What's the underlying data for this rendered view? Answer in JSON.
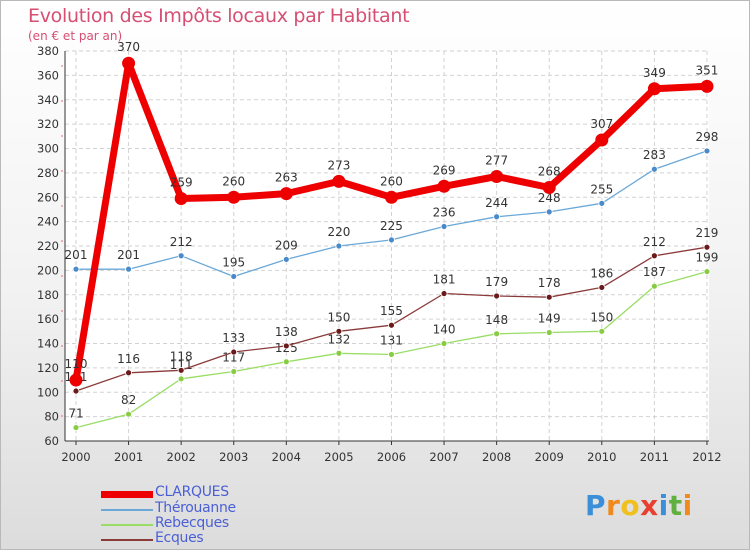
{
  "chart_data": {
    "type": "line",
    "title": "Evolution des Impôts locaux par Habitant",
    "subtitle": "(en € et par an)",
    "xlabel": "",
    "ylabel": "",
    "ylim": [
      60,
      380
    ],
    "y_ticks": [
      60,
      80,
      100,
      120,
      140,
      160,
      180,
      200,
      220,
      240,
      260,
      280,
      300,
      320,
      340,
      360,
      380
    ],
    "categories": [
      "2000",
      "2001",
      "2002",
      "2003",
      "2004",
      "2005",
      "2006",
      "2007",
      "2008",
      "2009",
      "2010",
      "2011",
      "2012"
    ],
    "grid": true,
    "legend_position": "bottom-left",
    "series": [
      {
        "name": "Rebecques",
        "color": "#99dd66",
        "dot": "#88cc44",
        "width": 1.3,
        "values": [
          71,
          82,
          111,
          117,
          125,
          132,
          131,
          140,
          148,
          149,
          150,
          187,
          199
        ],
        "labels": [
          "71",
          "82",
          "111",
          "117",
          "125",
          "132",
          "131",
          "140",
          "148",
          "149",
          "150",
          "187",
          "199"
        ]
      },
      {
        "name": "Ecques",
        "color": "#8b3a3a",
        "dot": "#6a1a1a",
        "width": 1.3,
        "values": [
          101,
          116,
          118,
          133,
          138,
          150,
          155,
          181,
          179,
          178,
          186,
          212,
          219
        ],
        "labels": [
          "101",
          "116",
          "118",
          "133",
          "138",
          "150",
          "155",
          "181",
          "179",
          "178",
          "186",
          "212",
          "219"
        ]
      },
      {
        "name": "Thérouanne",
        "color": "#6aa8d8",
        "dot": "#4a8ac8",
        "width": 1.3,
        "values": [
          201,
          201,
          212,
          195,
          209,
          220,
          225,
          236,
          244,
          248,
          255,
          283,
          298
        ],
        "labels": [
          "201",
          "201",
          "212",
          "195",
          "209",
          "220",
          "225",
          "236",
          "244",
          "248",
          "255",
          "283",
          "298"
        ]
      },
      {
        "name": "CLARQUES",
        "color": "#ee0000",
        "dot": "#ee0000",
        "width": 7,
        "values": [
          110,
          370,
          259,
          260,
          263,
          273,
          260,
          269,
          277,
          268,
          307,
          349,
          351
        ],
        "labels": [
          "110",
          "370",
          "259",
          "260",
          "263",
          "273",
          "260",
          "269",
          "277",
          "268",
          "307",
          "349",
          "351"
        ]
      }
    ]
  },
  "legend": [
    {
      "name": "CLARQUES",
      "color": "#ee0000",
      "width": 7
    },
    {
      "name": "Thérouanne",
      "color": "#6aa8d8",
      "width": 1.5
    },
    {
      "name": "Rebecques",
      "color": "#99dd66",
      "width": 1.5
    },
    {
      "name": "Ecques",
      "color": "#8b3a3a",
      "width": 1.5
    }
  ],
  "brand": {
    "letters": [
      "P",
      "r",
      "o",
      "x",
      "i",
      "t",
      "i"
    ],
    "colors": [
      "#3a8fd8",
      "#f08a1e",
      "#f0c020",
      "#e84030",
      "#3a8fd8",
      "#60b040",
      "#f08a1e"
    ]
  }
}
